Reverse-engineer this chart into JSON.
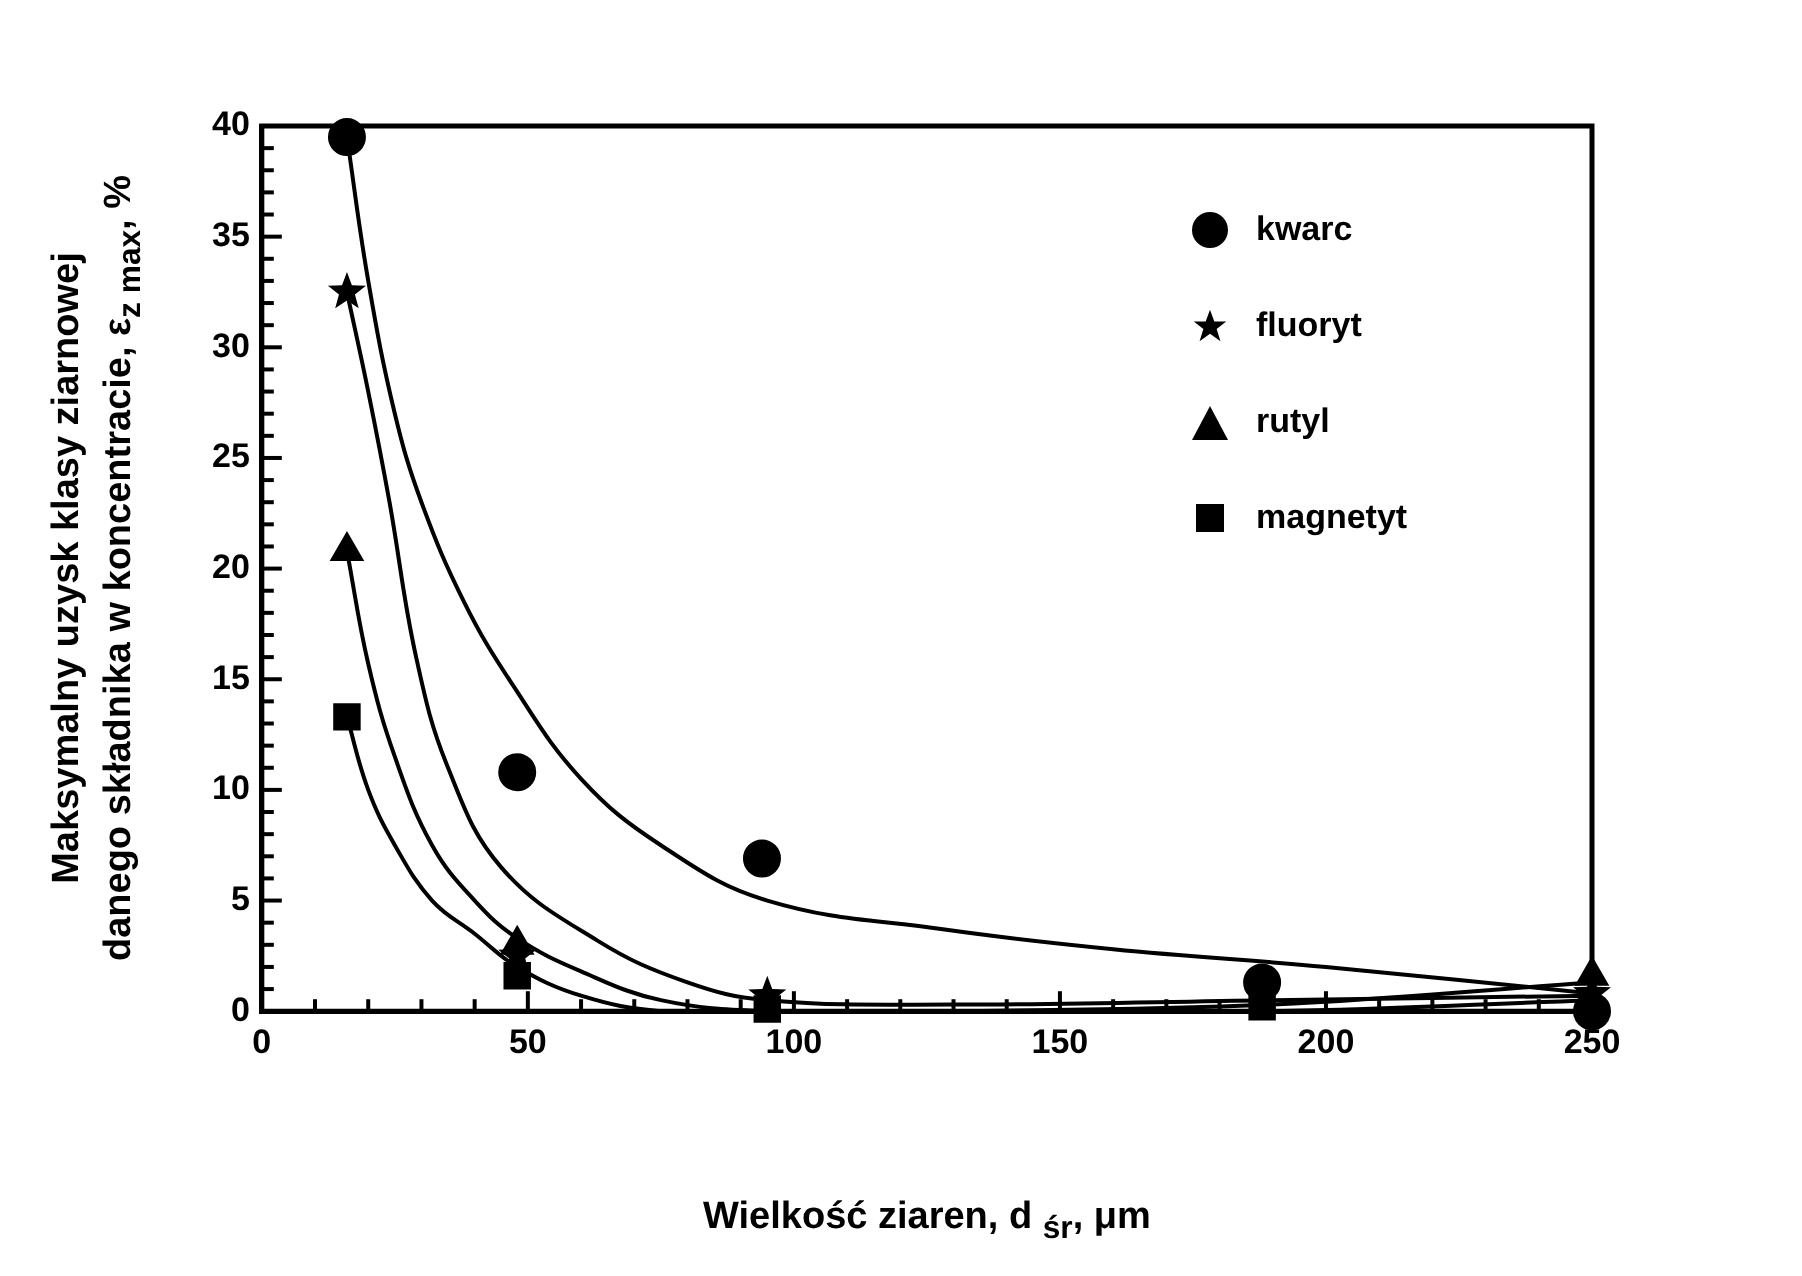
{
  "chart_data": {
    "type": "scatter",
    "xlabel": "Wielkość ziaren, d $_{śr}$, μm",
    "ylabel": "Maksymalny uzysk klasy ziarnowej\ndanego składnika w koncentracie,    ε$_{z max}$, %",
    "xlim": [
      0,
      250
    ],
    "ylim": [
      0,
      40
    ],
    "xticks": [
      0,
      {
        "value": 10,
        "label": null
      },
      {
        "value": 20,
        "label": null
      },
      {
        "value": 30,
        "label": null
      },
      {
        "value": 40,
        "label": null
      },
      50,
      {
        "value": 60,
        "label": null
      },
      {
        "value": 70,
        "label": null
      },
      {
        "value": 80,
        "label": null
      },
      {
        "value": 90,
        "label": null
      },
      100,
      {
        "value": 110,
        "label": null
      },
      {
        "value": 120,
        "label": null
      },
      {
        "value": 130,
        "label": null
      },
      {
        "value": 140,
        "label": null
      },
      150,
      {
        "value": 160,
        "label": null
      },
      {
        "value": 170,
        "label": null
      },
      {
        "value": 180,
        "label": null
      },
      {
        "value": 190,
        "label": null
      },
      200,
      {
        "value": 210,
        "label": null
      },
      {
        "value": 220,
        "label": null
      },
      {
        "value": 230,
        "label": null
      },
      {
        "value": 240,
        "label": null
      },
      250
    ],
    "yticks": [
      0,
      {
        "value": 1,
        "label": null
      },
      {
        "value": 2,
        "label": null
      },
      {
        "value": 3,
        "label": null
      },
      {
        "value": 4,
        "label": null
      },
      5,
      {
        "value": 6,
        "label": null
      },
      {
        "value": 7,
        "label": null
      },
      {
        "value": 8,
        "label": null
      },
      {
        "value": 9,
        "label": null
      },
      10,
      {
        "value": 11,
        "label": null
      },
      {
        "value": 12,
        "label": null
      },
      {
        "value": 13,
        "label": null
      },
      {
        "value": 14,
        "label": null
      },
      15,
      {
        "value": 16,
        "label": null
      },
      {
        "value": 17,
        "label": null
      },
      {
        "value": 18,
        "label": null
      },
      {
        "value": 19,
        "label": null
      },
      20,
      {
        "value": 21,
        "label": null
      },
      {
        "value": 22,
        "label": null
      },
      {
        "value": 23,
        "label": null
      },
      {
        "value": 24,
        "label": null
      },
      25,
      {
        "value": 26,
        "label": null
      },
      {
        "value": 27,
        "label": null
      },
      {
        "value": 28,
        "label": null
      },
      {
        "value": 29,
        "label": null
      },
      30,
      {
        "value": 31,
        "label": null
      },
      {
        "value": 32,
        "label": null
      },
      {
        "value": 33,
        "label": null
      },
      {
        "value": 34,
        "label": null
      },
      35,
      {
        "value": 36,
        "label": null
      },
      {
        "value": 37,
        "label": null
      },
      {
        "value": 38,
        "label": null
      },
      {
        "value": 39,
        "label": null
      },
      40
    ],
    "legend": "top right",
    "series": [
      {
        "name": "kwarc",
        "marker": "circle",
        "color": "#000000",
        "x": [
          16,
          48,
          94,
          188,
          250
        ],
        "values": [
          39.5,
          10.8,
          6.9,
          1.3,
          0
        ]
      },
      {
        "name": "fluoryt",
        "marker": "star",
        "color": "#000000",
        "x": [
          16,
          48,
          95,
          188,
          250
        ],
        "values": [
          32.5,
          2.5,
          0.7,
          null,
          0.8
        ]
      },
      {
        "name": "rutyl",
        "marker": "triangle",
        "color": "#000000",
        "x": [
          16,
          48,
          95,
          188,
          250
        ],
        "values": [
          20.8,
          3.0,
          null,
          null,
          1.6
        ]
      },
      {
        "name": "magnetyt",
        "marker": "square",
        "color": "#000000",
        "x": [
          16,
          48,
          95,
          188
        ],
        "values": [
          13.3,
          1.6,
          0.1,
          0.2
        ]
      },
      {
        "type": "line",
        "marker": "none",
        "color": "#000000",
        "x": [
          16,
          20,
          25,
          30,
          38,
          47,
          60,
          75,
          95,
          128,
          160,
          200,
          250
        ],
        "values": [
          39.5,
          33,
          27,
          23,
          18.5,
          14.8,
          10.5,
          7.5,
          5,
          3.7,
          2.8,
          2,
          0.8
        ]
      },
      {
        "type": "line",
        "marker": "none",
        "color": "#000000",
        "x": [
          16,
          20,
          24,
          29,
          35,
          45,
          63,
          80,
          95,
          130,
          190,
          250
        ],
        "values": [
          32.5,
          28,
          23,
          16,
          11,
          6.5,
          3.2,
          1.3,
          0.5,
          0.3,
          0.5,
          0.7
        ]
      },
      {
        "type": "line",
        "marker": "none",
        "color": "#000000",
        "x": [
          16,
          20,
          25,
          32,
          40,
          48,
          60,
          75,
          95,
          130,
          190,
          250
        ],
        "values": [
          20.8,
          15.7,
          11.5,
          7.5,
          5,
          3.3,
          1.8,
          0.5,
          0,
          0,
          0.3,
          1.3
        ]
      },
      {
        "type": "line",
        "marker": "none",
        "color": "#000000",
        "x": [
          16,
          20,
          25,
          32,
          40,
          48,
          60,
          75,
          95,
          130,
          190,
          250
        ],
        "values": [
          13.3,
          10,
          7.5,
          5,
          3.5,
          2,
          0.7,
          0,
          0,
          0,
          0,
          0.5
        ]
      }
    ]
  }
}
